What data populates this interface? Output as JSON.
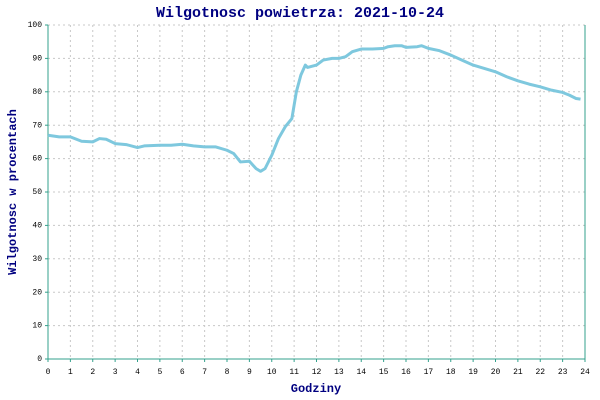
{
  "chart_data": {
    "type": "line",
    "title": "Wilgotnosc powietrza: 2021-10-24",
    "x_label": "Godziny",
    "y_label": "Wilgotnosc w procentach",
    "x": [
      0,
      0.5,
      1,
      1.5,
      2,
      2.3,
      2.6,
      3,
      3.5,
      4,
      4.3,
      5,
      5.5,
      6,
      6.5,
      7,
      7.5,
      8,
      8.3,
      8.6,
      9,
      9.3,
      9.5,
      9.7,
      10,
      10.3,
      10.6,
      10.9,
      11.1,
      11.3,
      11.5,
      11.6,
      12,
      12.3,
      12.7,
      13,
      13.3,
      13.6,
      14,
      14.5,
      15,
      15.2,
      15.5,
      15.8,
      16,
      16.5,
      16.7,
      17,
      17.5,
      18,
      18.5,
      19,
      19.5,
      20,
      20.5,
      21,
      21.5,
      22,
      22.5,
      23,
      23.3,
      23.6,
      23.8
    ],
    "series": [
      {
        "name": "Wilgotnosc",
        "color": "#7ec8de",
        "values": [
          67,
          66.5,
          66.5,
          65.2,
          65,
          66,
          65.8,
          64.5,
          64.2,
          63.3,
          63.8,
          64,
          64,
          64.3,
          63.8,
          63.5,
          63.5,
          62.5,
          61.5,
          59,
          59.2,
          57,
          56.2,
          57,
          61,
          66,
          69.5,
          72,
          80,
          85,
          88,
          87.3,
          88,
          89.5,
          90,
          90,
          90.5,
          92,
          92.8,
          92.8,
          93,
          93.5,
          93.8,
          93.8,
          93.3,
          93.5,
          93.8,
          93,
          92.3,
          91,
          89.5,
          88,
          87,
          86,
          84.5,
          83.3,
          82.3,
          81.5,
          80.5,
          79.8,
          79,
          78,
          77.8
        ]
      }
    ],
    "xlim": [
      0,
      24
    ],
    "xticks": [
      0,
      1,
      2,
      3,
      4,
      5,
      6,
      7,
      8,
      9,
      10,
      11,
      12,
      13,
      14,
      15,
      16,
      17,
      18,
      19,
      20,
      21,
      22,
      23,
      24
    ],
    "ylim": [
      0,
      100
    ],
    "yticks": [
      0,
      10,
      20,
      30,
      40,
      50,
      60,
      70,
      80,
      90,
      100
    ],
    "grid": true
  }
}
